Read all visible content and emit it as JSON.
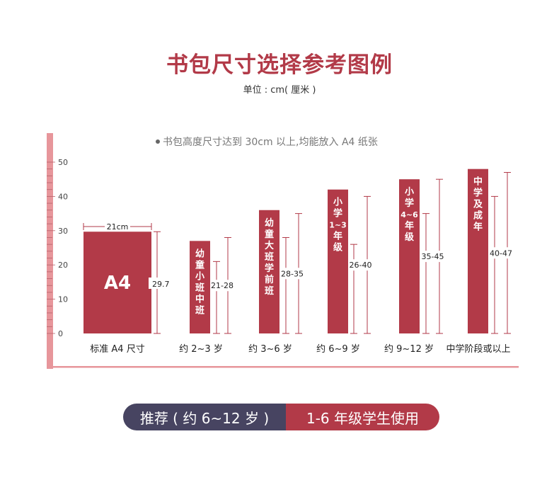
{
  "header": {
    "title": "书包尺寸选择参考图例",
    "unit": "单位 : cm( 厘米 )"
  },
  "note": "书包高度尺寸达到 30cm 以上,均能放入 A4 纸张",
  "colors": {
    "bar": "#b23a48",
    "ruler": "#e7969b",
    "pill_left": "#474461",
    "pill_right": "#b23a48"
  },
  "chart_data": {
    "type": "bar",
    "ylim": [
      0,
      50
    ],
    "yticks": [
      0,
      10,
      20,
      30,
      40,
      50
    ],
    "categories": [
      "标准 A4 尺寸",
      "约 2~3 岁",
      "约 3~6 岁",
      "约 6~9 岁",
      "约 9~12 岁",
      "中学阶段或以上"
    ],
    "bars": [
      {
        "category": "标准 A4 尺寸",
        "height": 29.7,
        "width_label": "21cm",
        "inner_label": "A4",
        "range_label": "29.7",
        "range": [
          0,
          29.7
        ]
      },
      {
        "category": "约 2~3 岁",
        "height": 27,
        "inner_label": "幼童小班 中班",
        "range_label": "21-28",
        "range": [
          21,
          28
        ]
      },
      {
        "category": "约 3~6 岁",
        "height": 36,
        "inner_label": "幼童大班学前班",
        "range_label": "28-35",
        "range": [
          28,
          35
        ]
      },
      {
        "category": "约 6~9 岁",
        "height": 42,
        "inner_label": "小学 1~3 年级",
        "range_label": "26-40",
        "range": [
          26,
          40
        ]
      },
      {
        "category": "约 9~12 岁",
        "height": 45,
        "inner_label": "小学 4~6 年级",
        "range_label": "35-45",
        "range": [
          35,
          45
        ]
      },
      {
        "category": "中学阶段或以上",
        "height": 48,
        "inner_label": "中学及成年",
        "range_label": "40-47",
        "range": [
          40,
          47
        ]
      }
    ]
  },
  "footer": {
    "recommend": "推荐 ( 约 6~12 岁 )",
    "grades": "1-6 年级学生使用"
  }
}
